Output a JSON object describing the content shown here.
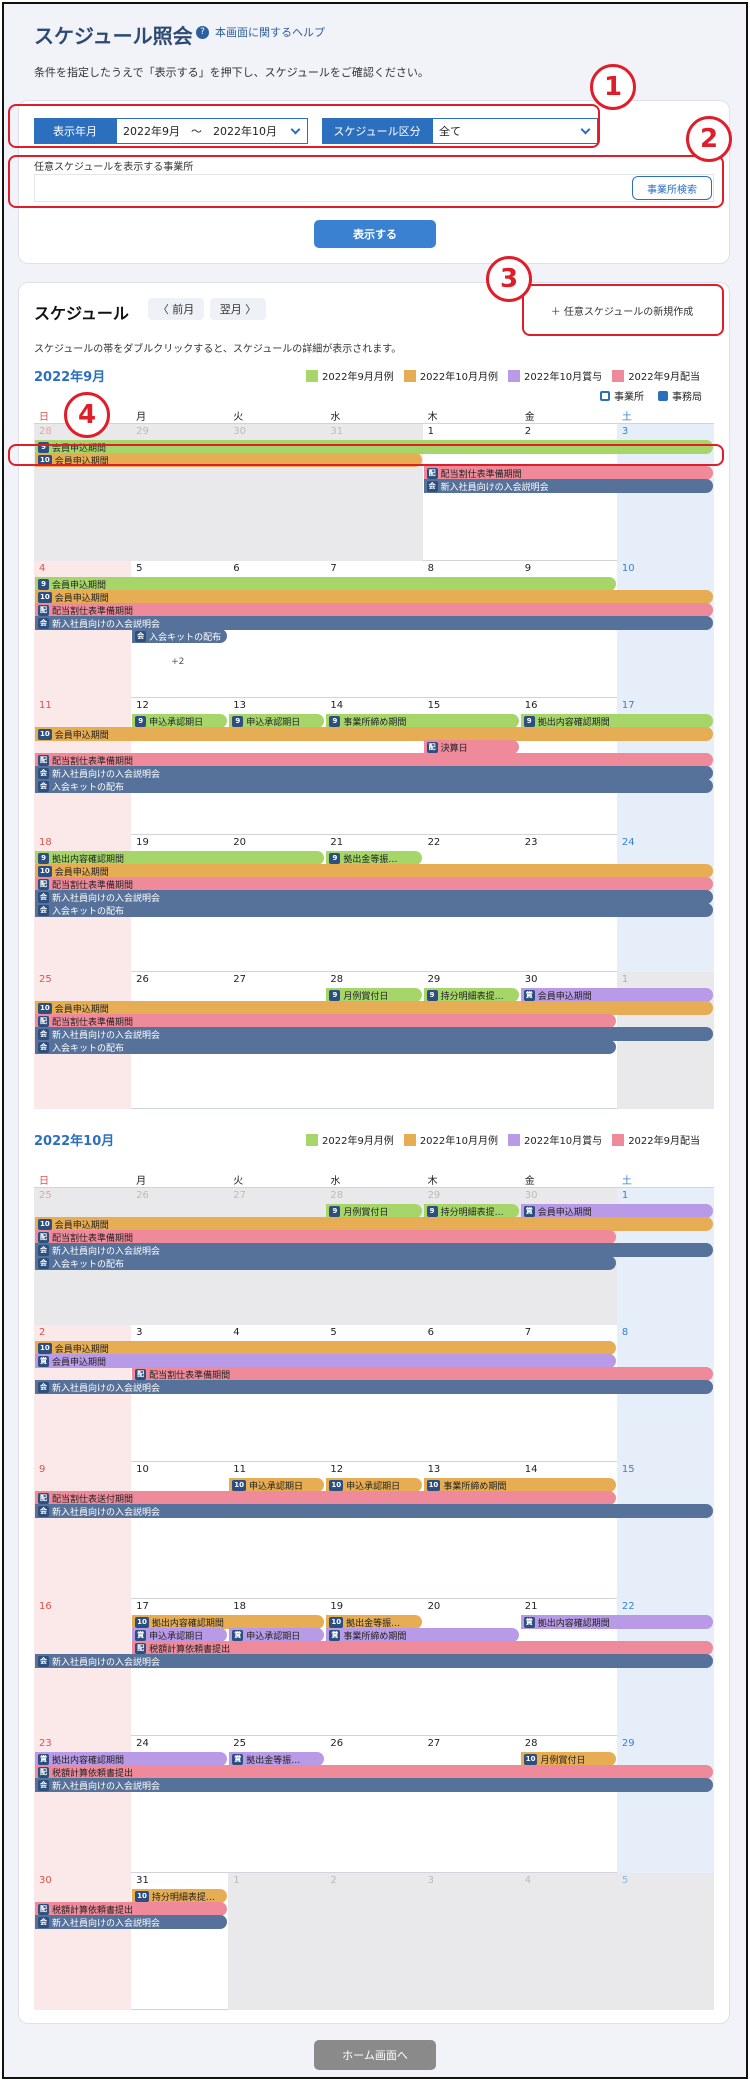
{
  "header": {
    "title": "スケジュール照会",
    "help": "本画面に関するヘルプ",
    "instruction": "条件を指定したうえで「表示する」を押下し、スケジュールをご確認ください。"
  },
  "filters": {
    "period_label": "表示年月",
    "period_value": "2022年9月　〜　2022年10月",
    "category_label": "スケジュール区分",
    "category_value": "全て",
    "office_label": "任意スケジュールを表示する事業所",
    "office_search": "事業所検索",
    "show": "表示する"
  },
  "callouts": [
    "1",
    "2",
    "3",
    "4"
  ],
  "schedule": {
    "title": "スケジュール",
    "prev": "〈 前月",
    "next": "翌月 〉",
    "new": "＋ 任意スケジュールの新規作成",
    "desc": "スケジュールの帯をダブルクリックすると、スケジュールの詳細が表示されます。"
  },
  "legend": [
    "2022年9月月例",
    "2022年10月月例",
    "2022年10月賞与",
    "2022年9月配当"
  ],
  "legend_colors": [
    "#a6d66a",
    "#e6ad55",
    "#b89ae6",
    "#ee8a9a"
  ],
  "legend2": [
    "事業所",
    "事務局"
  ],
  "weekdays": [
    "日",
    "月",
    "火",
    "水",
    "木",
    "金",
    "土"
  ],
  "months": [
    {
      "label": "2022年9月",
      "weeks": [
        {
          "days": [
            "28",
            "29",
            "30",
            "31",
            "1",
            "2",
            "3"
          ],
          "out": [
            0,
            1,
            2,
            3
          ],
          "more": "",
          "events": [
            {
              "s": 0,
              "e": 7,
              "r": 0,
              "c": "g",
              "t": "会員申込期間",
              "b": "9"
            },
            {
              "s": 0,
              "e": 4,
              "r": 1,
              "c": "o",
              "t": "会員申込期間",
              "b": "10"
            },
            {
              "s": 4,
              "e": 7,
              "r": 2,
              "c": "r",
              "t": "配当割仕表準備期間",
              "b": "配"
            },
            {
              "s": 4,
              "e": 7,
              "r": 3,
              "c": "n",
              "t": "新入社員向けの入会説明会",
              "b": "会"
            }
          ]
        },
        {
          "days": [
            "4",
            "5",
            "6",
            "7",
            "8",
            "9",
            "10"
          ],
          "out": [],
          "more": "+2",
          "events": [
            {
              "s": 0,
              "e": 6,
              "r": 0,
              "c": "g",
              "t": "会員申込期間",
              "b": "9"
            },
            {
              "s": 0,
              "e": 7,
              "r": 1,
              "c": "o",
              "t": "会員申込期間",
              "b": "10"
            },
            {
              "s": 0,
              "e": 7,
              "r": 2,
              "c": "r",
              "t": "配当割仕表準備期間",
              "b": "配"
            },
            {
              "s": 0,
              "e": 7,
              "r": 3,
              "c": "n",
              "t": "新入社員向けの入会説明会",
              "b": "会"
            },
            {
              "s": 1,
              "e": 2,
              "r": 4,
              "c": "n",
              "t": "入会キットの配布",
              "b": "会"
            }
          ]
        },
        {
          "days": [
            "11",
            "12",
            "13",
            "14",
            "15",
            "16",
            "17"
          ],
          "out": [],
          "more": "",
          "events": [
            {
              "s": 1,
              "e": 2,
              "r": 0,
              "c": "g",
              "t": "申込承認期日",
              "b": "9"
            },
            {
              "s": 2,
              "e": 3,
              "r": 0,
              "c": "g",
              "t": "申込承認期日",
              "b": "9"
            },
            {
              "s": 3,
              "e": 5,
              "r": 0,
              "c": "g",
              "t": "事業所締め期間",
              "b": "9"
            },
            {
              "s": 5,
              "e": 7,
              "r": 0,
              "c": "g",
              "t": "拠出内容確認期間",
              "b": "9"
            },
            {
              "s": 0,
              "e": 7,
              "r": 1,
              "c": "o",
              "t": "会員申込期間",
              "b": "10"
            },
            {
              "s": 4,
              "e": 5,
              "r": 2,
              "c": "r",
              "t": "決算日",
              "b": "配"
            },
            {
              "s": 0,
              "e": 7,
              "r": 3,
              "c": "r",
              "t": "配当割仕表準備期間",
              "b": "配"
            },
            {
              "s": 0,
              "e": 7,
              "r": 4,
              "c": "n",
              "t": "新入社員向けの入会説明会",
              "b": "会"
            },
            {
              "s": 0,
              "e": 7,
              "r": 5,
              "c": "n",
              "t": "入会キットの配布",
              "b": "会"
            }
          ]
        },
        {
          "days": [
            "18",
            "19",
            "20",
            "21",
            "22",
            "23",
            "24"
          ],
          "out": [],
          "more": "",
          "events": [
            {
              "s": 0,
              "e": 3,
              "r": 0,
              "c": "g",
              "t": "拠出内容確認期間",
              "b": "9"
            },
            {
              "s": 3,
              "e": 4,
              "r": 0,
              "c": "g",
              "t": "拠出金等振…",
              "b": "9"
            },
            {
              "s": 0,
              "e": 7,
              "r": 1,
              "c": "o",
              "t": "会員申込期間",
              "b": "10"
            },
            {
              "s": 0,
              "e": 7,
              "r": 2,
              "c": "r",
              "t": "配当割仕表準備期間",
              "b": "配"
            },
            {
              "s": 0,
              "e": 7,
              "r": 3,
              "c": "n",
              "t": "新入社員向けの入会説明会",
              "b": "会"
            },
            {
              "s": 0,
              "e": 7,
              "r": 4,
              "c": "n",
              "t": "入会キットの配布",
              "b": "会"
            }
          ]
        },
        {
          "days": [
            "25",
            "26",
            "27",
            "28",
            "29",
            "30",
            "1"
          ],
          "out": [
            6
          ],
          "more": "",
          "events": [
            {
              "s": 3,
              "e": 4,
              "r": 0,
              "c": "g",
              "t": "月例賞付日",
              "b": "9"
            },
            {
              "s": 4,
              "e": 5,
              "r": 0,
              "c": "g",
              "t": "持分明細表提…",
              "b": "9"
            },
            {
              "s": 5,
              "e": 7,
              "r": 0,
              "c": "p",
              "t": "会員申込期間",
              "b": "賞"
            },
            {
              "s": 0,
              "e": 7,
              "r": 1,
              "c": "o",
              "t": "会員申込期間",
              "b": "10"
            },
            {
              "s": 0,
              "e": 6,
              "r": 2,
              "c": "r",
              "t": "配当割仕表準備期間",
              "b": "配"
            },
            {
              "s": 0,
              "e": 7,
              "r": 3,
              "c": "n",
              "t": "新入社員向けの入会説明会",
              "b": "会"
            },
            {
              "s": 0,
              "e": 6,
              "r": 4,
              "c": "n",
              "t": "入会キットの配布",
              "b": "会"
            }
          ]
        }
      ]
    },
    {
      "label": "2022年10月",
      "weeks": [
        {
          "days": [
            "25",
            "26",
            "27",
            "28",
            "29",
            "30",
            "1"
          ],
          "out": [
            0,
            1,
            2,
            3,
            4,
            5
          ],
          "more": "",
          "events": [
            {
              "s": 3,
              "e": 4,
              "r": 0,
              "c": "g",
              "t": "月例賞付日",
              "b": "9"
            },
            {
              "s": 4,
              "e": 5,
              "r": 0,
              "c": "g",
              "t": "持分明細表提…",
              "b": "9"
            },
            {
              "s": 5,
              "e": 7,
              "r": 0,
              "c": "p",
              "t": "会員申込期間",
              "b": "賞"
            },
            {
              "s": 0,
              "e": 7,
              "r": 1,
              "c": "o",
              "t": "会員申込期間",
              "b": "10"
            },
            {
              "s": 0,
              "e": 6,
              "r": 2,
              "c": "r",
              "t": "配当割仕表準備期間",
              "b": "配"
            },
            {
              "s": 0,
              "e": 7,
              "r": 3,
              "c": "n",
              "t": "新入社員向けの入会説明会",
              "b": "会"
            },
            {
              "s": 0,
              "e": 6,
              "r": 4,
              "c": "n",
              "t": "入会キットの配布",
              "b": "会"
            }
          ]
        },
        {
          "days": [
            "2",
            "3",
            "4",
            "5",
            "6",
            "7",
            "8"
          ],
          "out": [],
          "more": "",
          "events": [
            {
              "s": 0,
              "e": 6,
              "r": 0,
              "c": "o",
              "t": "会員申込期間",
              "b": "10"
            },
            {
              "s": 0,
              "e": 6,
              "r": 1,
              "c": "p",
              "t": "会員申込期間",
              "b": "賞"
            },
            {
              "s": 1,
              "e": 7,
              "r": 2,
              "c": "r",
              "t": "配当割仕表準備期間",
              "b": "配"
            },
            {
              "s": 0,
              "e": 7,
              "r": 3,
              "c": "n",
              "t": "新入社員向けの入会説明会",
              "b": "会"
            }
          ]
        },
        {
          "days": [
            "9",
            "10",
            "11",
            "12",
            "13",
            "14",
            "15"
          ],
          "out": [],
          "more": "",
          "events": [
            {
              "s": 2,
              "e": 3,
              "r": 0,
              "c": "o",
              "t": "申込承認期日",
              "b": "10"
            },
            {
              "s": 3,
              "e": 4,
              "r": 0,
              "c": "o",
              "t": "申込承認期日",
              "b": "10"
            },
            {
              "s": 4,
              "e": 6,
              "r": 0,
              "c": "o",
              "t": "事業所締め期間",
              "b": "10"
            },
            {
              "s": 0,
              "e": 6,
              "r": 1,
              "c": "r",
              "t": "配当割仕表送付期間",
              "b": "配"
            },
            {
              "s": 0,
              "e": 7,
              "r": 2,
              "c": "n",
              "t": "新入社員向けの入会説明会",
              "b": "会"
            }
          ]
        },
        {
          "days": [
            "16",
            "17",
            "18",
            "19",
            "20",
            "21",
            "22"
          ],
          "out": [],
          "more": "",
          "events": [
            {
              "s": 1,
              "e": 3,
              "r": 0,
              "c": "o",
              "t": "拠出内容確認期間",
              "b": "10"
            },
            {
              "s": 3,
              "e": 4,
              "r": 0,
              "c": "o",
              "t": "拠出金等振…",
              "b": "10"
            },
            {
              "s": 5,
              "e": 7,
              "r": 0,
              "c": "p",
              "t": "拠出内容確認期間",
              "b": "賞"
            },
            {
              "s": 1,
              "e": 2,
              "r": 1,
              "c": "p",
              "t": "申込承認期日",
              "b": "賞"
            },
            {
              "s": 2,
              "e": 3,
              "r": 1,
              "c": "p",
              "t": "申込承認期日",
              "b": "賞"
            },
            {
              "s": 3,
              "e": 5,
              "r": 1,
              "c": "p",
              "t": "事業所締め期間",
              "b": "賞"
            },
            {
              "s": 1,
              "e": 7,
              "r": 2,
              "c": "r",
              "t": "税額計算依頼書提出",
              "b": "配"
            },
            {
              "s": 0,
              "e": 7,
              "r": 3,
              "c": "n",
              "t": "新入社員向けの入会説明会",
              "b": "会"
            }
          ]
        },
        {
          "days": [
            "23",
            "24",
            "25",
            "26",
            "27",
            "28",
            "29"
          ],
          "out": [],
          "more": "",
          "events": [
            {
              "s": 0,
              "e": 2,
              "r": 0,
              "c": "p",
              "t": "拠出内容確認期間",
              "b": "賞"
            },
            {
              "s": 2,
              "e": 3,
              "r": 0,
              "c": "p",
              "t": "拠出金等振…",
              "b": "賞"
            },
            {
              "s": 5,
              "e": 6,
              "r": 0,
              "c": "o",
              "t": "月例賞付日",
              "b": "10"
            },
            {
              "s": 0,
              "e": 7,
              "r": 1,
              "c": "r",
              "t": "税額計算依頼書提出",
              "b": "配"
            },
            {
              "s": 0,
              "e": 7,
              "r": 2,
              "c": "n",
              "t": "新入社員向けの入会説明会",
              "b": "会"
            }
          ]
        },
        {
          "days": [
            "30",
            "31",
            "1",
            "2",
            "3",
            "4",
            "5"
          ],
          "out": [
            2,
            3,
            4,
            5,
            6
          ],
          "more": "",
          "events": [
            {
              "s": 1,
              "e": 2,
              "r": 0,
              "c": "o",
              "t": "持分明細表提…",
              "b": "10"
            },
            {
              "s": 0,
              "e": 2,
              "r": 1,
              "c": "r",
              "t": "税額計算依頼書提出",
              "b": "配"
            },
            {
              "s": 0,
              "e": 2,
              "r": 2,
              "c": "n",
              "t": "新入社員向けの入会説明会",
              "b": "会"
            }
          ]
        }
      ]
    }
  ],
  "footer": {
    "home": "ホーム画面へ"
  }
}
